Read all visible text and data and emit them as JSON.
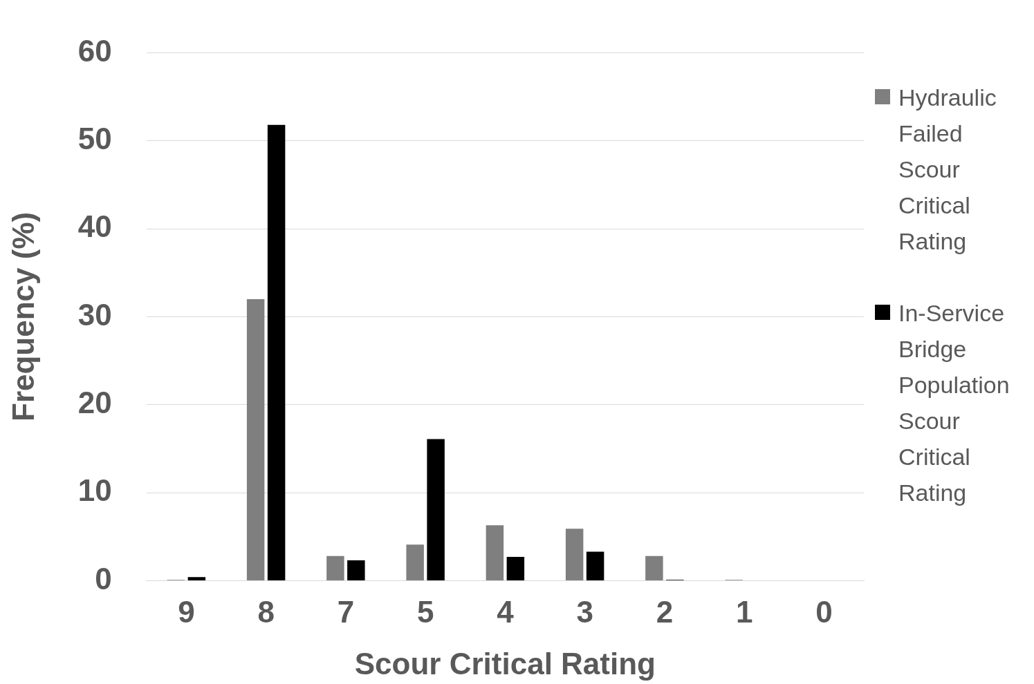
{
  "chart_data": {
    "type": "bar",
    "xlabel": "Scour Critical Rating",
    "ylabel": "Frequency (%)",
    "categories": [
      "9",
      "8",
      "7",
      "5",
      "4",
      "3",
      "2",
      "1",
      "0"
    ],
    "series": [
      {
        "name": "Hydraulic Failed Scour Critical Rating",
        "color": "#7f7f7f",
        "values": [
          0.1,
          32,
          2.8,
          4.1,
          6.3,
          5.9,
          2.8,
          0.1,
          0
        ]
      },
      {
        "name": "In-Service Bridge Population Scour Critical Rating",
        "color": "#000000",
        "values": [
          0.4,
          51.8,
          2.3,
          16.1,
          2.7,
          3.3,
          0.1,
          0,
          0
        ]
      }
    ],
    "ylim": [
      0,
      60
    ],
    "yticks": [
      0,
      10,
      20,
      30,
      40,
      50,
      60
    ],
    "grid": "y",
    "legend": "right"
  }
}
